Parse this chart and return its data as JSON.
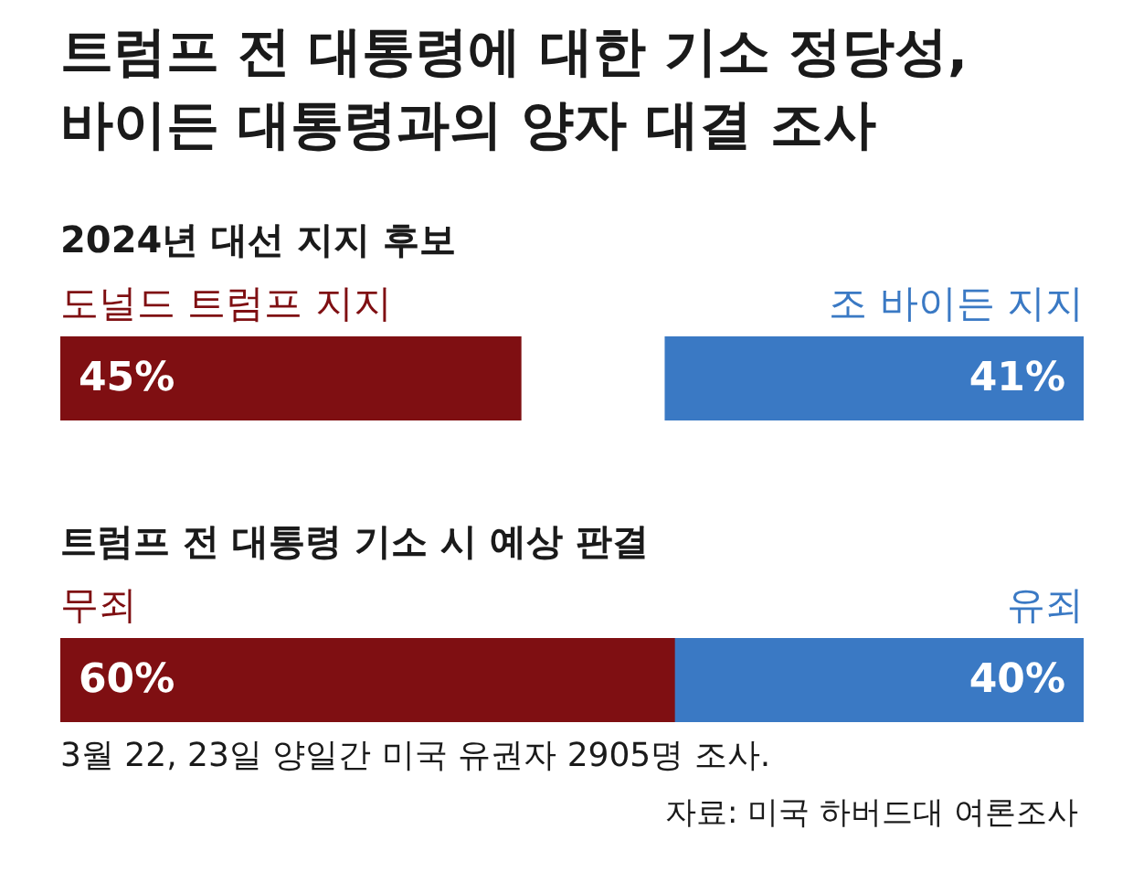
{
  "chart_data": [
    {
      "type": "bar",
      "title": "트럼프 전 대통령에 대한 기소 정당성,\n바이든 대통령과의 양자 대결 조사",
      "subtitle": "2024년 대선 지지 후보",
      "orientation": "horizontal",
      "stacked": true,
      "categories": [
        null
      ],
      "xlim": [
        0,
        100
      ],
      "tick_labels": false,
      "legend": false,
      "series": [
        {
          "name": "도널드 트럼프 지지",
          "color": "#7f0f12",
          "values": [
            45
          ],
          "value_labels": [
            "45%"
          ]
        },
        {
          "color": "#ffffff",
          "values": [
            14
          ],
          "value_labels": [
            null
          ]
        },
        {
          "name": "조 바이든 지지",
          "color": "#3a79c4",
          "values": [
            41
          ],
          "value_labels": [
            "41%"
          ]
        }
      ]
    },
    {
      "type": "bar",
      "subtitle": "트럼프 전 대통령 기소 시 예상 판결",
      "orientation": "horizontal",
      "stacked": true,
      "categories": [
        null
      ],
      "xlim": [
        0,
        100
      ],
      "tick_labels": false,
      "legend": false,
      "series": [
        {
          "name": "무죄",
          "color": "#7f0f12",
          "values": [
            60
          ],
          "value_labels": [
            "60%"
          ]
        },
        {
          "name": "유죄",
          "color": "#3a79c4",
          "values": [
            40
          ],
          "value_labels": [
            "40%"
          ]
        }
      ],
      "annotations": [
        "3월 22, 23일 양일간 미국 유권자 2905명 조사.",
        "자료: 미국 하버드대 여론조사"
      ]
    }
  ]
}
